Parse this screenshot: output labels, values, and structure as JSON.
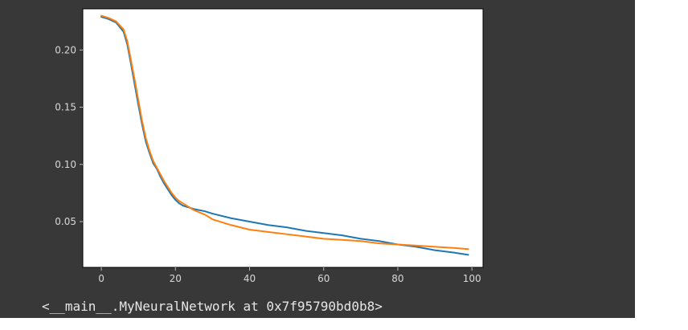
{
  "output": {
    "repr_text": "<__main__.MyNeuralNetwork at 0x7f95790bd0b8>"
  },
  "colors": {
    "background": "#383838",
    "plot_area": "#ffffff",
    "tick_text": "#d8d8d8",
    "axis_spine": "#000000"
  },
  "chart_data": {
    "type": "line",
    "title": "",
    "xlabel": "",
    "ylabel": "",
    "xlim": [
      -5,
      103
    ],
    "ylim": [
      0.01,
      0.236
    ],
    "x_ticks": [
      0,
      20,
      40,
      60,
      80,
      100
    ],
    "x_tick_labels": [
      "0",
      "20",
      "40",
      "60",
      "80",
      "100"
    ],
    "y_ticks": [
      0.05,
      0.1,
      0.15,
      0.2
    ],
    "y_tick_labels": [
      "0.05",
      "0.10",
      "0.15",
      "0.20"
    ],
    "grid": false,
    "legend": "none",
    "series": [
      {
        "color": "#1f77b4",
        "x": [
          0,
          2,
          4,
          6,
          7,
          8,
          9,
          10,
          11,
          12,
          13,
          14,
          15,
          16,
          17,
          18,
          19,
          20,
          21,
          22,
          23,
          25,
          28,
          30,
          35,
          40,
          45,
          50,
          55,
          60,
          65,
          70,
          75,
          80,
          85,
          90,
          95,
          99
        ],
        "y": [
          0.229,
          0.227,
          0.224,
          0.216,
          0.205,
          0.188,
          0.17,
          0.152,
          0.135,
          0.12,
          0.11,
          0.101,
          0.096,
          0.089,
          0.083,
          0.078,
          0.073,
          0.069,
          0.066,
          0.064,
          0.063,
          0.061,
          0.059,
          0.057,
          0.053,
          0.05,
          0.047,
          0.045,
          0.042,
          0.04,
          0.038,
          0.035,
          0.033,
          0.03,
          0.028,
          0.025,
          0.023,
          0.021
        ]
      },
      {
        "color": "#ff7f0e",
        "x": [
          0,
          2,
          4,
          6,
          7,
          8,
          9,
          10,
          11,
          12,
          13,
          14,
          15,
          16,
          17,
          18,
          19,
          20,
          21,
          22,
          23,
          25,
          28,
          30,
          35,
          40,
          45,
          50,
          55,
          60,
          65,
          70,
          75,
          80,
          85,
          90,
          95,
          99
        ],
        "y": [
          0.23,
          0.228,
          0.225,
          0.218,
          0.208,
          0.191,
          0.174,
          0.156,
          0.138,
          0.123,
          0.112,
          0.103,
          0.097,
          0.091,
          0.085,
          0.08,
          0.075,
          0.071,
          0.068,
          0.066,
          0.064,
          0.06,
          0.056,
          0.052,
          0.047,
          0.043,
          0.041,
          0.039,
          0.037,
          0.035,
          0.034,
          0.033,
          0.031,
          0.03,
          0.029,
          0.028,
          0.027,
          0.026
        ]
      }
    ]
  }
}
